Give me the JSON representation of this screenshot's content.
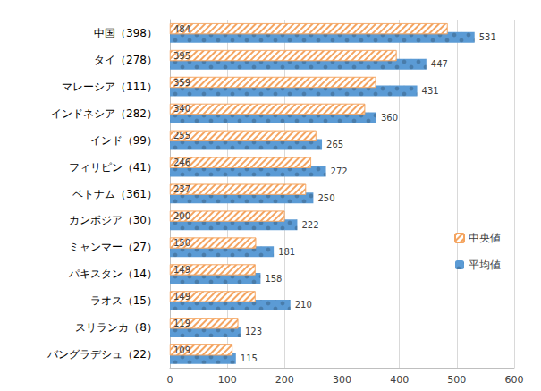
{
  "chart_data": {
    "type": "bar",
    "orientation": "horizontal",
    "categories": [
      "中国（398）",
      "タイ（278）",
      "マレーシア（111）",
      "インドネシア（282）",
      "インド（99）",
      "フィリピン（41）",
      "ベトナム（361）",
      "カンボジア（30）",
      "ミャンマー（27）",
      "パキスタン（14）",
      "ラオス（15）",
      "スリランカ（8）",
      "バングラデシュ（22）"
    ],
    "series": [
      {
        "name": "中央値",
        "color": "#f4a460",
        "values": [
          484,
          395,
          359,
          340,
          255,
          246,
          237,
          200,
          150,
          149,
          149,
          119,
          109
        ]
      },
      {
        "name": "平均値",
        "color": "#5b9bd5",
        "values": [
          531,
          447,
          431,
          360,
          265,
          272,
          250,
          222,
          181,
          158,
          210,
          123,
          115
        ]
      }
    ],
    "xlim": [
      0,
      600
    ],
    "xticks": [
      0,
      100,
      200,
      300,
      400,
      500,
      600
    ],
    "grid": true,
    "legend": "right",
    "data_labels": true
  }
}
